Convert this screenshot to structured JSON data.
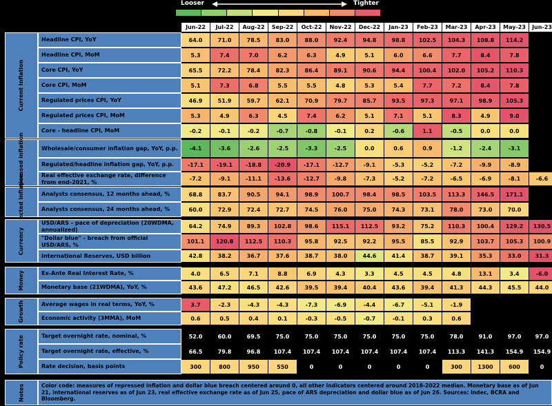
{
  "legend": {
    "looser": "Looser",
    "tighter": "Tighter",
    "colors": [
      "#5cb85c",
      "#8fcf6a",
      "#c3df7c",
      "#f2ea86",
      "#fbd57c",
      "#f8b96d",
      "#f28b6b",
      "#e85c6a"
    ]
  },
  "months": [
    "Jun-22",
    "Jul-22",
    "Aug-22",
    "Sep-22",
    "Oct-22",
    "Nov-22",
    "Dec-22",
    "Jan-23",
    "Feb-23",
    "Mar-23",
    "Apr-23",
    "May-23",
    "Jun-23"
  ],
  "sections": [
    {
      "label": "Current inflation",
      "rows": [
        {
          "label": "Headline CPI, YoY",
          "values": [
            "64.0",
            "71.0",
            "78.5",
            "83.0",
            "88.0",
            "92.4",
            "94.8",
            "98.8",
            "102.5",
            "104.3",
            "108.8",
            "114.2",
            ""
          ],
          "colors": [
            "#fbd57c",
            "#f8c070",
            "#f8b96d",
            "#f6a56a",
            "#f28b6b",
            "#f07c6a",
            "#ee756a",
            "#ec6a6a",
            "#ea626a",
            "#e85e6a",
            "#e75a6a",
            "#e5536a",
            "#000"
          ]
        },
        {
          "label": "Headline CPI, MoM",
          "values": [
            "5.3",
            "7.4",
            "7.0",
            "6.2",
            "6.3",
            "4.9",
            "5.1",
            "6.0",
            "6.6",
            "7.7",
            "8.4",
            "7.8",
            ""
          ],
          "colors": [
            "#f8c070",
            "#ed6f6a",
            "#ef786a",
            "#f29a6a",
            "#f2966a",
            "#f9cb74",
            "#f8c571",
            "#f4a46a",
            "#f28d6b",
            "#ea646a",
            "#e6566a",
            "#e9606a",
            "#000"
          ]
        },
        {
          "label": "Core CPI, YoY",
          "values": [
            "65.5",
            "72.2",
            "78.4",
            "82.3",
            "86.4",
            "89.1",
            "90.6",
            "94.4",
            "100.4",
            "102.0",
            "105.2",
            "110.3",
            ""
          ],
          "colors": [
            "#fbd57c",
            "#f8c070",
            "#f8b96d",
            "#f6a56a",
            "#f28b6b",
            "#f07c6a",
            "#ee756a",
            "#ec6a6a",
            "#ea626a",
            "#e85e6a",
            "#e75a6a",
            "#e5536a",
            "#000"
          ]
        },
        {
          "label": "Core CPI, MoM",
          "values": [
            "5.1",
            "7.3",
            "6.8",
            "5.5",
            "5.5",
            "4.8",
            "5.3",
            "5.4",
            "7.7",
            "7.2",
            "8.4",
            "7.8",
            ""
          ],
          "colors": [
            "#f8c571",
            "#ed6f6a",
            "#f0806a",
            "#f7bd6e",
            "#f7bd6e",
            "#fbd57c",
            "#f8c070",
            "#f8c070",
            "#ea646a",
            "#ee726a",
            "#e6566a",
            "#e9606a",
            "#000"
          ]
        },
        {
          "label": "Regulated prices CPI, YoY",
          "values": [
            "46.9",
            "51.9",
            "59.7",
            "62.1",
            "70.9",
            "79.7",
            "85.7",
            "93.5",
            "97.3",
            "97.1",
            "98.9",
            "105.3",
            ""
          ],
          "colors": [
            "#f8e07f",
            "#fbd57c",
            "#f8c070",
            "#f8b96d",
            "#f6a56a",
            "#f28b6b",
            "#ef806a",
            "#ec6a6a",
            "#ea626a",
            "#ea626a",
            "#e85e6a",
            "#e5536a",
            "#000"
          ]
        },
        {
          "label": "Regulated prices CPI, MoM",
          "values": [
            "5.3",
            "4.9",
            "6.3",
            "4.5",
            "7.4",
            "6.2",
            "5.1",
            "7.1",
            "5.1",
            "8.3",
            "4.9",
            "9.0",
            ""
          ],
          "colors": [
            "#f6b46c",
            "#f8c571",
            "#f08a6a",
            "#fbd57c",
            "#ee736a",
            "#f2966a",
            "#f8c571",
            "#ee756a",
            "#f8c571",
            "#e8586a",
            "#f8c571",
            "#e5536a",
            "#000"
          ]
        },
        {
          "label": "Core - headline CPI, MoM",
          "values": [
            "-0.2",
            "-0.1",
            "-0.2",
            "-0.7",
            "-0.8",
            "-0.1",
            "0.2",
            "-0.6",
            "1.1",
            "-0.5",
            "0.0",
            "0.0",
            ""
          ],
          "colors": [
            "#f2ea86",
            "#f2ea86",
            "#f2ea86",
            "#a8d676",
            "#9fd273",
            "#f2ea86",
            "#fbd57c",
            "#b5da78",
            "#e85c6a",
            "#c3df7c",
            "#f8e07f",
            "#f8e07f",
            "#000"
          ]
        }
      ]
    },
    {
      "label": "Repressed inflation",
      "rows": [
        {
          "label": "Wholesale/consumer inflation gap, YoY, p.p.",
          "values": [
            "-4.1",
            "-3.6",
            "-2.6",
            "-2.5",
            "-3.3",
            "-2.5",
            "0.0",
            "0.6",
            "0.9",
            "-1.2",
            "-2.4",
            "-3.1",
            ""
          ],
          "colors": [
            "#5cb85c",
            "#72c162",
            "#9ad072",
            "#a0d374",
            "#7fc767",
            "#a0d374",
            "#f8e07f",
            "#fbcc76",
            "#f8b96d",
            "#cfe47f",
            "#a6d575",
            "#86c969",
            "#000"
          ]
        },
        {
          "label": "Regulated/headline inflation gap, YoY, p.p.",
          "values": [
            "-17.1",
            "-19.1",
            "-18.8",
            "-20.9",
            "-17.1",
            "-12.7",
            "-9.1",
            "-5.3",
            "-5.2",
            "-7.2",
            "-9.9",
            "-8.9",
            ""
          ],
          "colors": [
            "#ef7b6a",
            "#ea646a",
            "#eb686a",
            "#e5536a",
            "#ef7b6a",
            "#f39e6b",
            "#f6b66d",
            "#f9d079",
            "#f9d079",
            "#f8c270",
            "#f6b06c",
            "#f6b86d",
            "#000"
          ]
        },
        {
          "label": "Real effective exchange rate, difference from end-2021, %",
          "values": [
            "-7.2",
            "-9.1",
            "-11.1",
            "-13.6",
            "-12.7",
            "-9.8",
            "-7.3",
            "-5.2",
            "-7.2",
            "-6.5",
            "-6.9",
            "-8.1",
            "-6.6"
          ],
          "colors": [
            "#f8c270",
            "#f6b06c",
            "#f39c6a",
            "#ed706a",
            "#f0826a",
            "#f5a96b",
            "#f8c070",
            "#f9d079",
            "#f8c270",
            "#f8c873",
            "#f8c571",
            "#f7b76d",
            "#f8c873"
          ]
        }
      ]
    },
    {
      "label": "Expected inflation",
      "rows": [
        {
          "label": "Analysts consensus, 12 months ahead, %",
          "values": [
            "68.8",
            "83.7",
            "90.5",
            "94.1",
            "98.9",
            "100.7",
            "98.4",
            "98.5",
            "103.5",
            "113.3",
            "146.5",
            "171.1",
            ""
          ],
          "colors": [
            "#fbd57c",
            "#f8c070",
            "#f6a56a",
            "#f39a6b",
            "#f28b6b",
            "#f28b6b",
            "#f28b6b",
            "#f28b6b",
            "#f07c6a",
            "#ee756a",
            "#ea626a",
            "#e5536a",
            "#000"
          ]
        },
        {
          "label": "Analysts consensus, 24 months ahead, %",
          "values": [
            "60.0",
            "72.9",
            "72.4",
            "72.7",
            "74.5",
            "76.0",
            "75.0",
            "74.3",
            "73.1",
            "78.0",
            "73.0",
            "70.0",
            ""
          ],
          "colors": [
            "#f8e07f",
            "#f8c571",
            "#f8c571",
            "#f8c571",
            "#f6b46c",
            "#f4a66a",
            "#f5ab6b",
            "#f6b46c",
            "#f8c070",
            "#f28b6b",
            "#f8c070",
            "#fbd57c",
            "#000"
          ]
        }
      ]
    },
    {
      "label": "Currency",
      "rows": [
        {
          "label": "USD/ARS - pace of depreciation (20WDMA, annualized)",
          "values": [
            "64.2",
            "74.9",
            "89.3",
            "102.8",
            "98.6",
            "115.1",
            "112.5",
            "93.2",
            "75.2",
            "110.3",
            "100.4",
            "129.2",
            "130.5"
          ],
          "colors": [
            "#f8e07f",
            "#f8c571",
            "#f6b06c",
            "#f08a6a",
            "#f39c6a",
            "#ec6a6a",
            "#ee726a",
            "#f4a66a",
            "#f8c571",
            "#ef7b6a",
            "#f28e6a",
            "#e85c6a",
            "#e5536a"
          ]
        },
        {
          "label": "\"Dollar blue\" - breach from official USD/ARS, %",
          "values": [
            "101.1",
            "120.8",
            "112.5",
            "110.3",
            "95.8",
            "92.5",
            "92.2",
            "95.5",
            "85.5",
            "92.9",
            "103.7",
            "105.3",
            "100.9"
          ],
          "colors": [
            "#f28e6a",
            "#e5536a",
            "#ec6a6a",
            "#ed706a",
            "#f6b46c",
            "#f8c270",
            "#f8c270",
            "#f6b46c",
            "#f8e07f",
            "#f8c270",
            "#f08a6a",
            "#ef806a",
            "#f28e6a"
          ]
        },
        {
          "label": "International Reserves, USD billion",
          "values": [
            "42.8",
            "38.2",
            "36.7",
            "37.6",
            "38.7",
            "38.0",
            "44.6",
            "41.4",
            "38.7",
            "39.1",
            "35.3",
            "33.0",
            "31.3"
          ],
          "colors": [
            "#f8e07f",
            "#f8c070",
            "#f6b06c",
            "#f8b96d",
            "#f8c270",
            "#f8c070",
            "#dce680",
            "#f8e07f",
            "#f8c270",
            "#f8c873",
            "#f39c6a",
            "#ee756a",
            "#e5536a"
          ]
        }
      ]
    },
    {
      "label": "Money",
      "rows": [
        {
          "label": "Ex-Ante Real Interest Rate, %",
          "values": [
            "4.0",
            "6.5",
            "7.1",
            "8.8",
            "6.9",
            "4.3",
            "3.3",
            "4.5",
            "4.5",
            "4.8",
            "13.1",
            "3.4",
            "-6.0"
          ],
          "colors": [
            "#f8e07f",
            "#fbd57c",
            "#fbd57c",
            "#f8c873",
            "#fbd57c",
            "#f8e07f",
            "#f2ea86",
            "#f8e07f",
            "#f8e07f",
            "#f8e07f",
            "#f8b96d",
            "#f2ea86",
            "#e5536a"
          ]
        },
        {
          "label": "Monetary base (21WDMA), YoY, %",
          "values": [
            "43.6",
            "47.2",
            "46.5",
            "42.6",
            "39.5",
            "39.4",
            "40.4",
            "43.6",
            "39.4",
            "41.3",
            "44.3",
            "45.5",
            "44.0"
          ],
          "colors": [
            "#fbd57c",
            "#f8e07f",
            "#f8e07f",
            "#fbd57c",
            "#f8c070",
            "#f8c070",
            "#f8c873",
            "#fbd57c",
            "#f8c070",
            "#f8c873",
            "#fbd57c",
            "#f8e07f",
            "#fbd57c"
          ]
        }
      ]
    },
    {
      "label": "Growth",
      "rows": [
        {
          "label": "Average wages in real terms, YoY, %",
          "values": [
            "3.7",
            "-2.3",
            "-4.3",
            "-4.3",
            "-7.3",
            "-6.9",
            "-4.4",
            "-6.7",
            "-5.1",
            "-1.9",
            "",
            "",
            ""
          ],
          "colors": [
            "#e85c6a",
            "#fbd57c",
            "#f8e07f",
            "#f8e07f",
            "#f2ea86",
            "#f2ea86",
            "#f8e07f",
            "#f2ea86",
            "#f8e07f",
            "#fbd57c",
            "#000",
            "#000",
            "#000"
          ]
        },
        {
          "label": "Economic activity (3MMA), MoM",
          "values": [
            "0.6",
            "0.5",
            "0.4",
            "0.1",
            "-0.3",
            "-0.5",
            "-0.7",
            "-0.1",
            "0.3",
            "0.6",
            "",
            "",
            ""
          ],
          "colors": [
            "#fbd57c",
            "#fbd57c",
            "#fbd57c",
            "#f8e07f",
            "#f8e07f",
            "#f8e07f",
            "#f2ea86",
            "#f8e07f",
            "#f8e07f",
            "#fbd57c",
            "#000",
            "#000",
            "#000"
          ]
        }
      ]
    },
    {
      "label": "Policy rate",
      "rows": [
        {
          "label": "Target overnight rate, nominal, %",
          "values": [
            "52.0",
            "60.0",
            "69.5",
            "75.0",
            "75.0",
            "75.0",
            "75.0",
            "75.0",
            "75.0",
            "78.0",
            "91.0",
            "97.0",
            "97.0"
          ],
          "colors": [
            "#000",
            "#000",
            "#000",
            "#000",
            "#000",
            "#000",
            "#000",
            "#000",
            "#000",
            "#000",
            "#000",
            "#000",
            "#000"
          ]
        },
        {
          "label": "Target overnight rate, effective, %",
          "values": [
            "66.5",
            "79.8",
            "96.8",
            "107.4",
            "107.4",
            "107.4",
            "107.4",
            "107.4",
            "107.4",
            "113.3",
            "141.3",
            "154.9",
            "154.9"
          ],
          "colors": [
            "#000",
            "#000",
            "#000",
            "#000",
            "#000",
            "#000",
            "#000",
            "#000",
            "#000",
            "#000",
            "#000",
            "#000",
            "#000"
          ]
        },
        {
          "label": "Rate decision, basis points",
          "values": [
            "300",
            "800",
            "950",
            "550",
            "0",
            "0",
            "0",
            "0",
            "0",
            "300",
            "1300",
            "600",
            "0"
          ],
          "colors": [
            "#fbd57c",
            "#fbd57c",
            "#fbd57c",
            "#fbd57c",
            "#000",
            "#000",
            "#000",
            "#000",
            "#000",
            "#fbd57c",
            "#fbd57c",
            "#fbd57c",
            "#000"
          ]
        }
      ]
    }
  ],
  "notes": {
    "label": "Notes",
    "text": "Color code: measures of repressed inflation and dollar blue breach centered around 0, all other indicators centered around 2018-2022 median. Monetary base as of Jun 21, international reserves as of Jun 23, real effective exchange rate as of Jun 25, pace of ARS depreciation and dollar blue as of Jun 26. Sources: Indec, BCRA and Bloomberg."
  }
}
